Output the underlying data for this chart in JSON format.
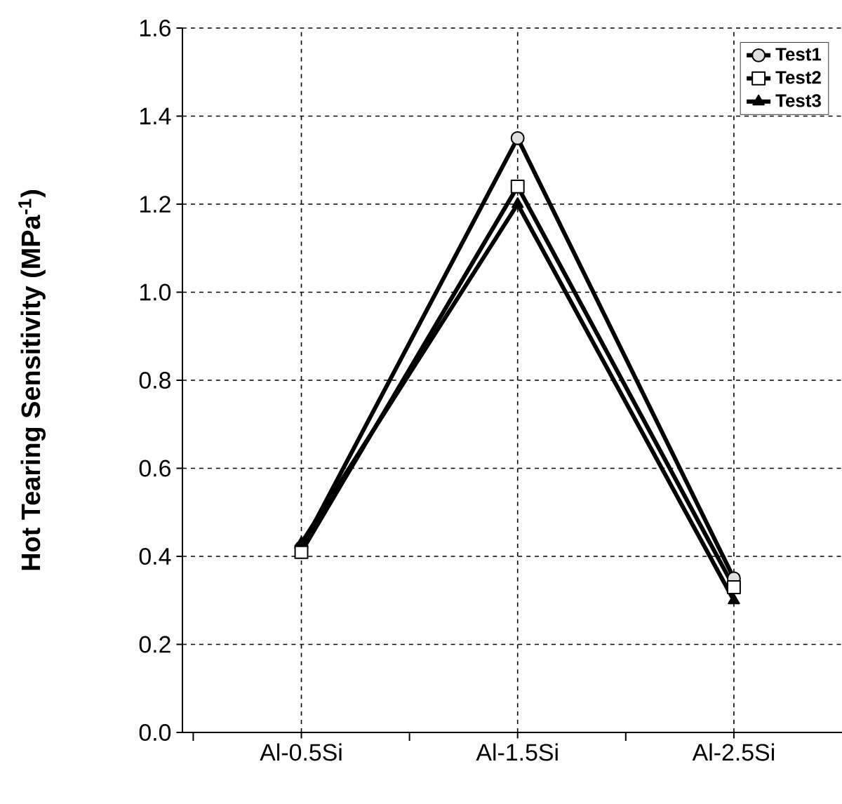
{
  "chart_data": {
    "type": "line",
    "ylabel": "Hot Tearing Sensitivity (MPa$^{-1}$)",
    "categories": [
      "Al-0.5Si",
      "Al-1.5Si",
      "Al-2.5Si"
    ],
    "series": [
      {
        "name": "Test1",
        "color": "#000000",
        "marker": "circle",
        "values": [
          0.42,
          1.35,
          0.35
        ]
      },
      {
        "name": "Test2",
        "color": "#000000",
        "marker": "square",
        "values": [
          0.41,
          1.24,
          0.33
        ]
      },
      {
        "name": "Test3",
        "color": "#000000",
        "marker": "triangle",
        "values": [
          0.43,
          1.2,
          0.3
        ]
      }
    ],
    "ylim": [
      0,
      1.6
    ],
    "yticks": [
      {
        "value": 0,
        "label": "0.0"
      },
      {
        "value": 0.2,
        "label": "0.2"
      },
      {
        "value": 0.4,
        "label": "0.4"
      },
      {
        "value": 0.6,
        "label": "0.6"
      },
      {
        "value": 0.8,
        "label": "0.8"
      },
      {
        "value": 1.0,
        "label": "1.0"
      },
      {
        "value": 1.2,
        "label": "1.2"
      },
      {
        "value": 1.4,
        "label": "1.4"
      },
      {
        "value": 1.6,
        "label": "1.6"
      }
    ],
    "grid": true,
    "legend": "top right",
    "line_style": "solid"
  }
}
